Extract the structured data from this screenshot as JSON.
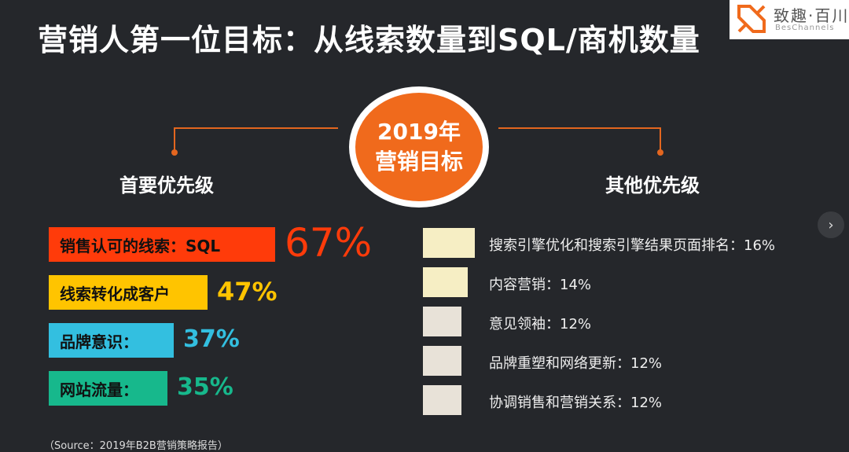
{
  "title": "营销人第一位目标：从线索数量到SQL/商机数量",
  "logo": {
    "text_cn": "致趣·百川",
    "text_en": "BesChannels"
  },
  "goal": {
    "line1": "2019年",
    "line2": "营销目标"
  },
  "headings": {
    "primary": "首要优先级",
    "other": "其他优先级"
  },
  "colors": {
    "accent": "#f06a1c",
    "primary": [
      "#ff3b0a",
      "#ffc400",
      "#33bfe0",
      "#17b88c"
    ],
    "primary_values": [
      "#ff3b0a",
      "#ffc400",
      "#33bfe0",
      "#17b88c"
    ],
    "other": [
      "#f6eec4",
      "#f6eec4",
      "#e8e2d8",
      "#e8e2d8",
      "#e8e2d8"
    ]
  },
  "chart_data": [
    {
      "type": "bar",
      "title": "首要优先级",
      "categories": [
        "销售认可的线索：SQL",
        "线索转化成客户",
        "品牌意识：",
        "网站流量："
      ],
      "values": [
        67,
        47,
        37,
        35
      ],
      "value_labels": [
        "67%",
        "47%",
        "37%",
        "35%"
      ],
      "unit": "%"
    },
    {
      "type": "bar",
      "title": "其他优先级",
      "categories": [
        "搜索引擎优化和搜索引擎结果页面排名",
        "内容营销",
        "意见领袖",
        "品牌重塑和网络更新",
        "协调销售和营销关系"
      ],
      "values": [
        16,
        14,
        12,
        12,
        12
      ],
      "labels": [
        "搜索引擎优化和搜索引擎结果页面排名：16%",
        "内容营销：14%",
        "意见领袖：12%",
        "品牌重塑和网络更新：12%",
        "协调销售和营销关系：12%"
      ],
      "unit": "%"
    }
  ],
  "source": "（Source：2019年B2B营销策略报告）",
  "nav": {
    "next_icon": "chevron-right-icon",
    "next_glyph": "›"
  }
}
